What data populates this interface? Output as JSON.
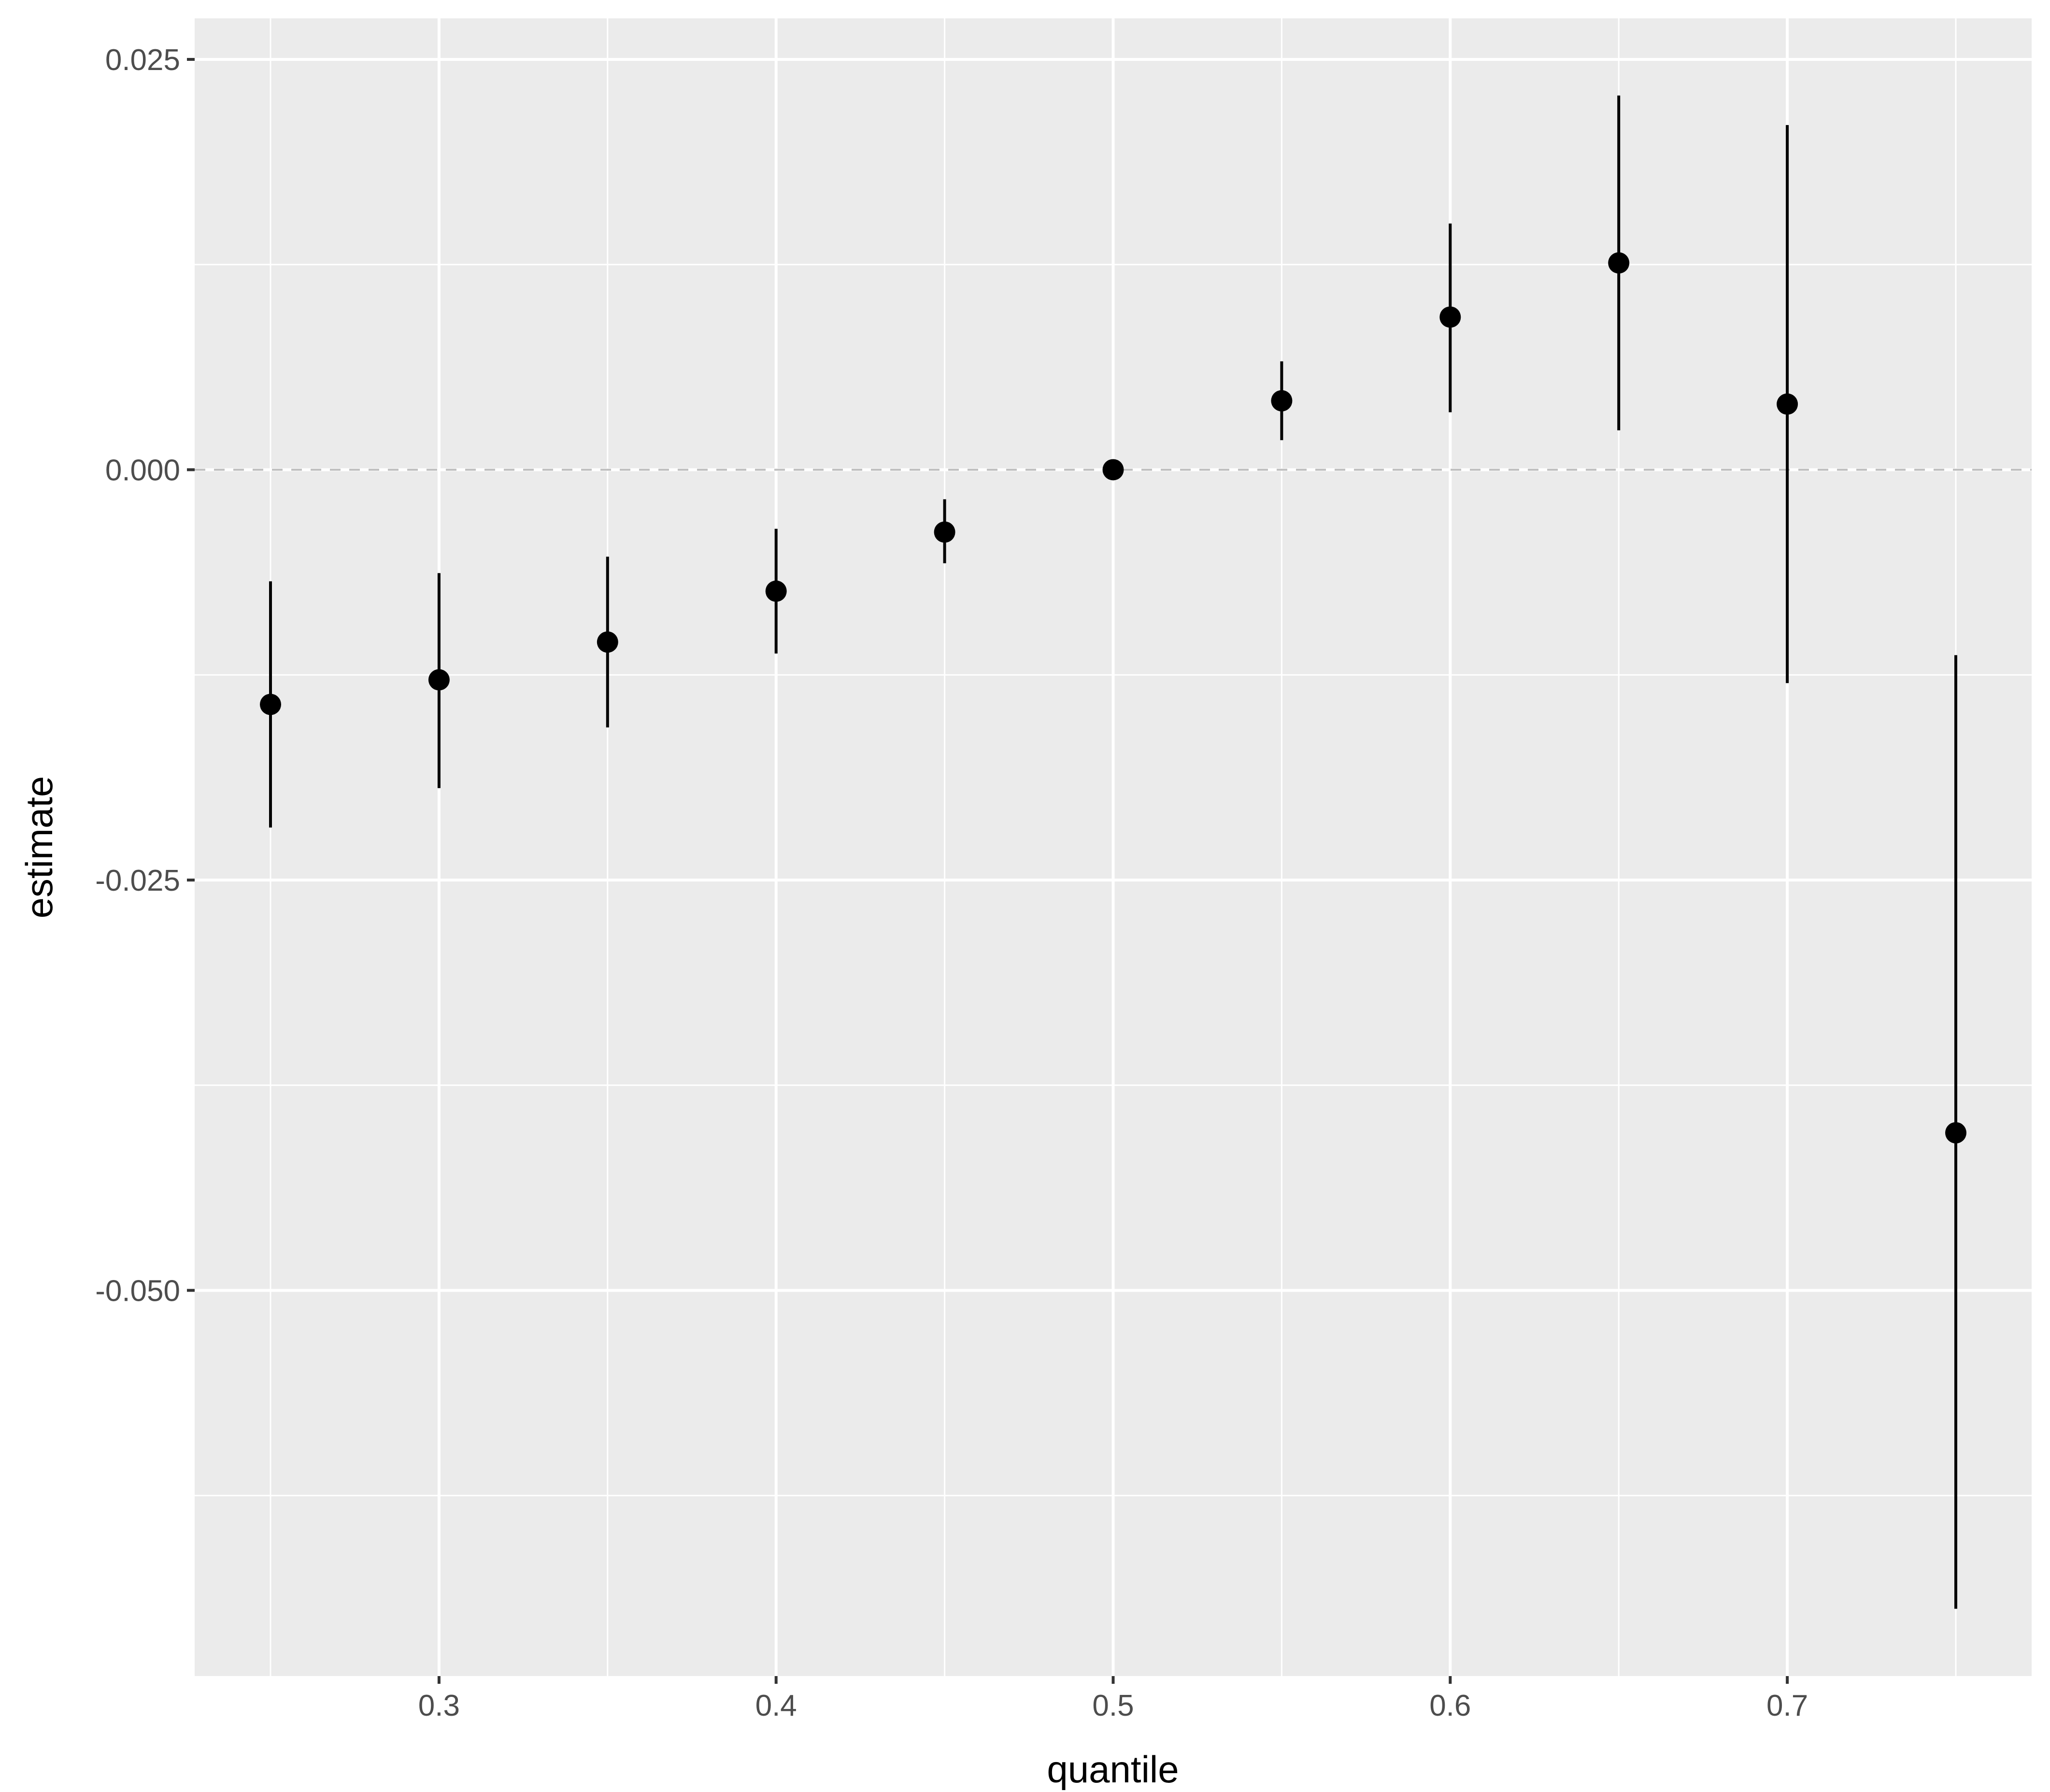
{
  "chart_data": {
    "type": "scatter",
    "title": "",
    "xlabel": "quantile",
    "ylabel": "estimate",
    "xlim": [
      0.2275,
      0.7725
    ],
    "ylim": [
      -0.0735,
      0.0275
    ],
    "x_ticks": [
      0.3,
      0.4,
      0.5,
      0.6,
      0.7
    ],
    "x_tick_labels": [
      "0.3",
      "0.4",
      "0.5",
      "0.6",
      "0.7"
    ],
    "y_ticks": [
      0.025,
      0.0,
      -0.025,
      -0.05
    ],
    "y_tick_labels": [
      "0.025",
      "0.000",
      "-0.025",
      "-0.050"
    ],
    "grid": true,
    "reference_line": {
      "y": 0.0,
      "style": "dashed"
    },
    "series": [
      {
        "x": [
          0.25,
          0.3,
          0.35,
          0.4,
          0.45,
          0.5,
          0.55,
          0.6,
          0.65,
          0.7,
          0.75
        ],
        "y": [
          -0.0143,
          -0.0128,
          -0.0105,
          -0.0074,
          -0.0038,
          0.0,
          0.0042,
          0.0093,
          0.0126,
          0.004,
          -0.0404
        ],
        "lower": [
          -0.0218,
          -0.0194,
          -0.0157,
          -0.0112,
          -0.0057,
          0.0,
          0.0018,
          0.0035,
          0.0024,
          -0.013,
          -0.0694
        ],
        "upper": [
          -0.0068,
          -0.0063,
          -0.0053,
          -0.0036,
          -0.0018,
          0.0,
          0.0066,
          0.015,
          0.0228,
          0.021,
          -0.0113
        ]
      }
    ],
    "colors": {
      "panel": "#ebebeb",
      "grid": "#ffffff",
      "points": "#000000",
      "reference_line": "#bdbdbd",
      "tick_text": "#4d4d4d"
    }
  }
}
